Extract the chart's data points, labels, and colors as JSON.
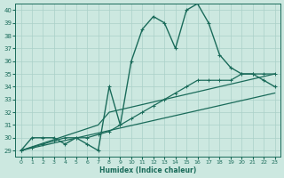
{
  "xlabel": "Humidex (Indice chaleur)",
  "ylabel": "",
  "xlim": [
    -0.5,
    23.5
  ],
  "ylim": [
    28.5,
    40.5
  ],
  "yticks": [
    29,
    30,
    31,
    32,
    33,
    34,
    35,
    36,
    37,
    38,
    39,
    40
  ],
  "xticks": [
    0,
    1,
    2,
    3,
    4,
    5,
    6,
    7,
    8,
    9,
    10,
    11,
    12,
    13,
    14,
    15,
    16,
    17,
    18,
    19,
    20,
    21,
    22,
    23
  ],
  "bg_color": "#cce8e0",
  "grid_color": "#aad0c8",
  "line_color": "#1a6b5a",
  "line1_x": [
    0,
    1,
    2,
    3,
    4,
    5,
    6,
    7,
    8,
    9,
    10,
    11,
    12,
    13,
    14,
    15,
    16,
    17,
    18,
    19,
    20,
    21,
    22,
    23
  ],
  "line1_y": [
    29,
    30,
    30,
    30,
    29.5,
    30,
    29.5,
    29,
    34,
    31,
    36,
    38.5,
    39.5,
    39,
    37,
    40,
    40.5,
    39,
    36.5,
    35.5,
    35,
    35,
    34.5,
    34
  ],
  "line2_x": [
    0,
    1,
    2,
    3,
    4,
    5,
    6,
    7,
    8,
    9,
    10,
    11,
    12,
    13,
    14,
    15,
    16,
    17,
    18,
    19,
    20,
    21,
    22,
    23
  ],
  "line2_y": [
    29,
    29.25,
    29.5,
    29.75,
    30.0,
    30.0,
    30.0,
    30.25,
    30.5,
    31.0,
    31.5,
    32.0,
    32.5,
    33.0,
    33.5,
    34.0,
    34.5,
    34.5,
    34.5,
    34.5,
    35.0,
    35.0,
    35.0,
    35.0
  ],
  "line3_x": [
    0,
    7,
    8,
    23
  ],
  "line3_y": [
    29,
    31,
    32,
    35
  ],
  "line4_x": [
    0,
    23
  ],
  "line4_y": [
    29,
    33.5
  ]
}
